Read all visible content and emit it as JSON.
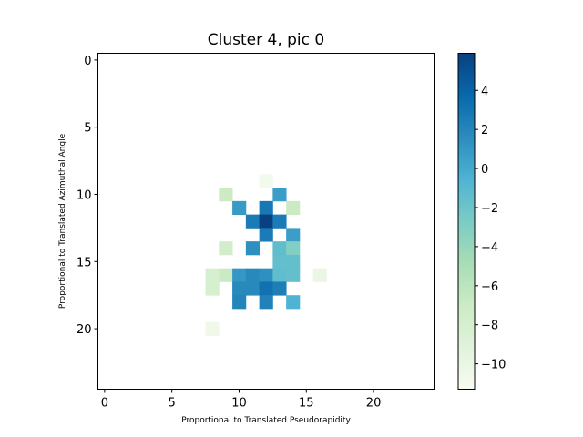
{
  "chart_data": {
    "type": "heatmap",
    "title": "Cluster 4, pic 0",
    "xlabel": "Proportional to Translated Pseudorapidity",
    "ylabel": "Proportional to Translated Azimuthal Angle",
    "grid_size": 25,
    "xlim": [
      -0.5,
      24.5
    ],
    "ylim": [
      24.5,
      -0.5
    ],
    "x_ticks": [
      0,
      5,
      10,
      15,
      20
    ],
    "y_ticks": [
      0,
      5,
      10,
      15,
      20
    ],
    "colormap": "GnBu",
    "colorbar": {
      "min": -11.3,
      "max": 5.9,
      "ticks": [
        4,
        2,
        0,
        -2,
        -4,
        -6,
        -8,
        -10
      ]
    },
    "cells": [
      {
        "x": 12,
        "y": 9,
        "v": -10.8
      },
      {
        "x": 9,
        "y": 10,
        "v": -7.0
      },
      {
        "x": 13,
        "y": 10,
        "v": 0.6
      },
      {
        "x": 10,
        "y": 11,
        "v": 0.8
      },
      {
        "x": 12,
        "y": 11,
        "v": 2.8
      },
      {
        "x": 14,
        "y": 11,
        "v": -7.0
      },
      {
        "x": 11,
        "y": 12,
        "v": 2.6
      },
      {
        "x": 12,
        "y": 12,
        "v": 5.9
      },
      {
        "x": 13,
        "y": 12,
        "v": 2.6
      },
      {
        "x": 12,
        "y": 13,
        "v": 2.6
      },
      {
        "x": 14,
        "y": 13,
        "v": 0.6
      },
      {
        "x": 9,
        "y": 14,
        "v": -7.6
      },
      {
        "x": 11,
        "y": 14,
        "v": 1.4
      },
      {
        "x": 13,
        "y": 14,
        "v": -1.4
      },
      {
        "x": 14,
        "y": 14,
        "v": -3.0
      },
      {
        "x": 13,
        "y": 15,
        "v": -1.6
      },
      {
        "x": 14,
        "y": 15,
        "v": -1.6
      },
      {
        "x": 8,
        "y": 16,
        "v": -8.2
      },
      {
        "x": 9,
        "y": 16,
        "v": -6.8
      },
      {
        "x": 10,
        "y": 16,
        "v": 1.0
      },
      {
        "x": 11,
        "y": 16,
        "v": 1.8
      },
      {
        "x": 12,
        "y": 16,
        "v": 1.4
      },
      {
        "x": 13,
        "y": 16,
        "v": -1.4
      },
      {
        "x": 14,
        "y": 16,
        "v": -1.6
      },
      {
        "x": 16,
        "y": 16,
        "v": -10.2
      },
      {
        "x": 8,
        "y": 17,
        "v": -8.0
      },
      {
        "x": 10,
        "y": 17,
        "v": 1.8
      },
      {
        "x": 11,
        "y": 17,
        "v": 1.8
      },
      {
        "x": 12,
        "y": 17,
        "v": 3.2
      },
      {
        "x": 13,
        "y": 17,
        "v": 2.4
      },
      {
        "x": 10,
        "y": 18,
        "v": 2.0
      },
      {
        "x": 12,
        "y": 18,
        "v": 2.2
      },
      {
        "x": 14,
        "y": 18,
        "v": -0.6
      },
      {
        "x": 8,
        "y": 20,
        "v": -10.6
      }
    ]
  }
}
